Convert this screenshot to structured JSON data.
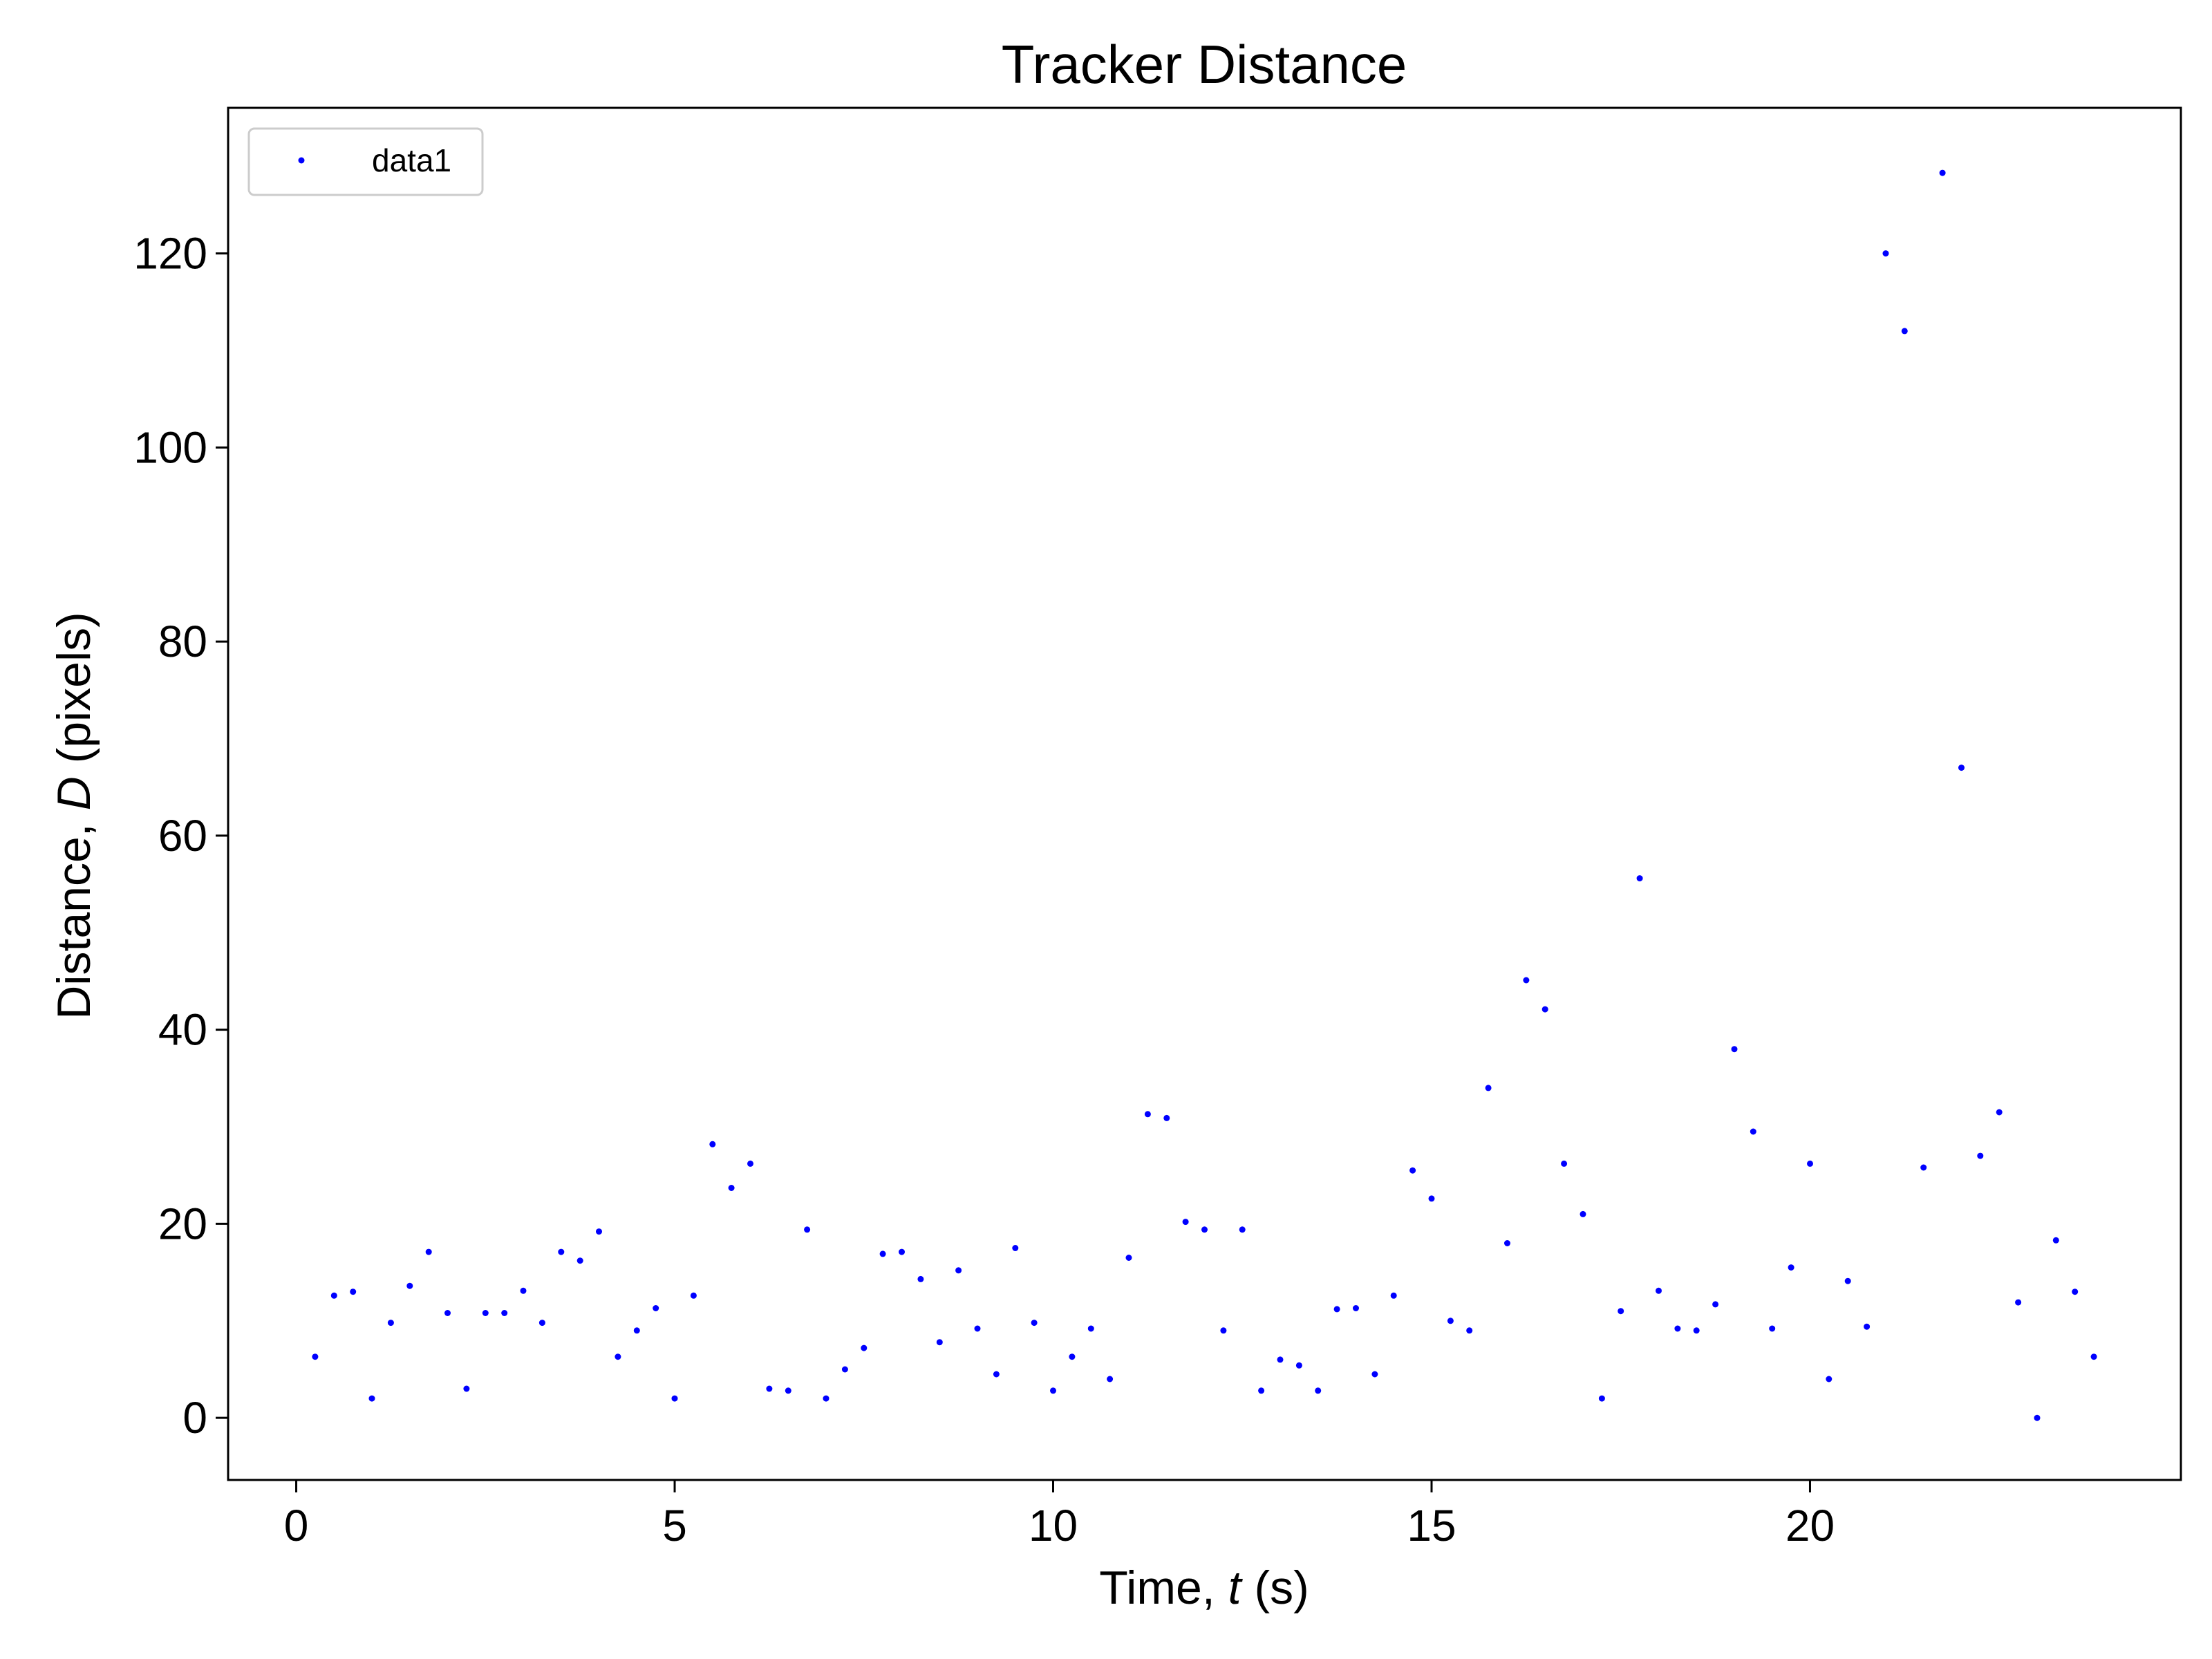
{
  "chart_data": {
    "type": "scatter",
    "title": "Tracker Distance",
    "xlabel": {
      "prefix": "Time, ",
      "var": "t",
      "suffix": " (s)"
    },
    "ylabel": {
      "prefix": "Distance, ",
      "var": "D",
      "suffix": " (pixels)"
    },
    "xlim": [
      -0.9,
      24.9
    ],
    "ylim": [
      -6.4,
      135
    ],
    "xticks": [
      0,
      5,
      10,
      15,
      20
    ],
    "yticks": [
      0,
      20,
      40,
      60,
      80,
      100,
      120
    ],
    "grid": false,
    "legend_position": "top-left",
    "series": [
      {
        "name": "data1",
        "color": "#0000ff",
        "marker": "point",
        "x": [
          0.25,
          0.5,
          0.75,
          1,
          1.25,
          1.5,
          1.75,
          2,
          2.25,
          2.5,
          2.75,
          3,
          3.25,
          3.5,
          3.75,
          4,
          4.25,
          4.5,
          4.75,
          5,
          5.25,
          5.5,
          5.75,
          6,
          6.25,
          6.5,
          6.75,
          7,
          7.25,
          7.5,
          7.75,
          8,
          8.25,
          8.5,
          8.75,
          9,
          9.25,
          9.5,
          9.75,
          10,
          10.25,
          10.5,
          10.75,
          11,
          11.25,
          11.5,
          11.75,
          12,
          12.25,
          12.5,
          12.75,
          13,
          13.25,
          13.5,
          13.75,
          14,
          14.25,
          14.5,
          14.75,
          15,
          15.25,
          15.5,
          15.75,
          16,
          16.25,
          16.5,
          16.75,
          17,
          17.25,
          17.5,
          17.75,
          18,
          18.25,
          18.5,
          18.75,
          19,
          19.25,
          19.5,
          19.75,
          20,
          20.25,
          20.5,
          20.75,
          21,
          21.25,
          21.5,
          21.75,
          22,
          22.25,
          22.5,
          22.75,
          23,
          23.25,
          23.5,
          23.75
        ],
        "y": [
          6.3,
          12.6,
          13.0,
          2.0,
          9.8,
          13.6,
          17.1,
          10.8,
          3.0,
          10.8,
          10.8,
          13.1,
          9.8,
          17.1,
          16.2,
          19.2,
          6.3,
          9.0,
          11.3,
          2.0,
          12.6,
          28.2,
          23.7,
          26.2,
          3.0,
          2.8,
          19.4,
          2.0,
          5.0,
          7.2,
          16.9,
          17.1,
          14.3,
          7.8,
          15.2,
          9.2,
          4.5,
          17.5,
          9.8,
          2.8,
          6.3,
          9.2,
          4.0,
          16.5,
          31.3,
          30.9,
          20.2,
          19.4,
          9.0,
          19.4,
          2.8,
          6.0,
          5.4,
          2.8,
          11.2,
          11.3,
          4.5,
          12.6,
          25.5,
          22.6,
          10.0,
          9.0,
          34.0,
          18.0,
          45.1,
          42.1,
          26.2,
          21.0,
          2.0,
          11.0,
          55.6,
          13.1,
          9.2,
          9.0,
          11.7,
          38.0,
          29.5,
          9.2,
          15.5,
          26.2,
          4.0,
          14.1,
          9.4,
          120.0,
          112.0,
          25.8,
          128.3,
          67.0,
          27.0,
          31.5,
          11.9,
          0.0,
          18.3,
          13.0,
          6.3
        ]
      }
    ]
  }
}
